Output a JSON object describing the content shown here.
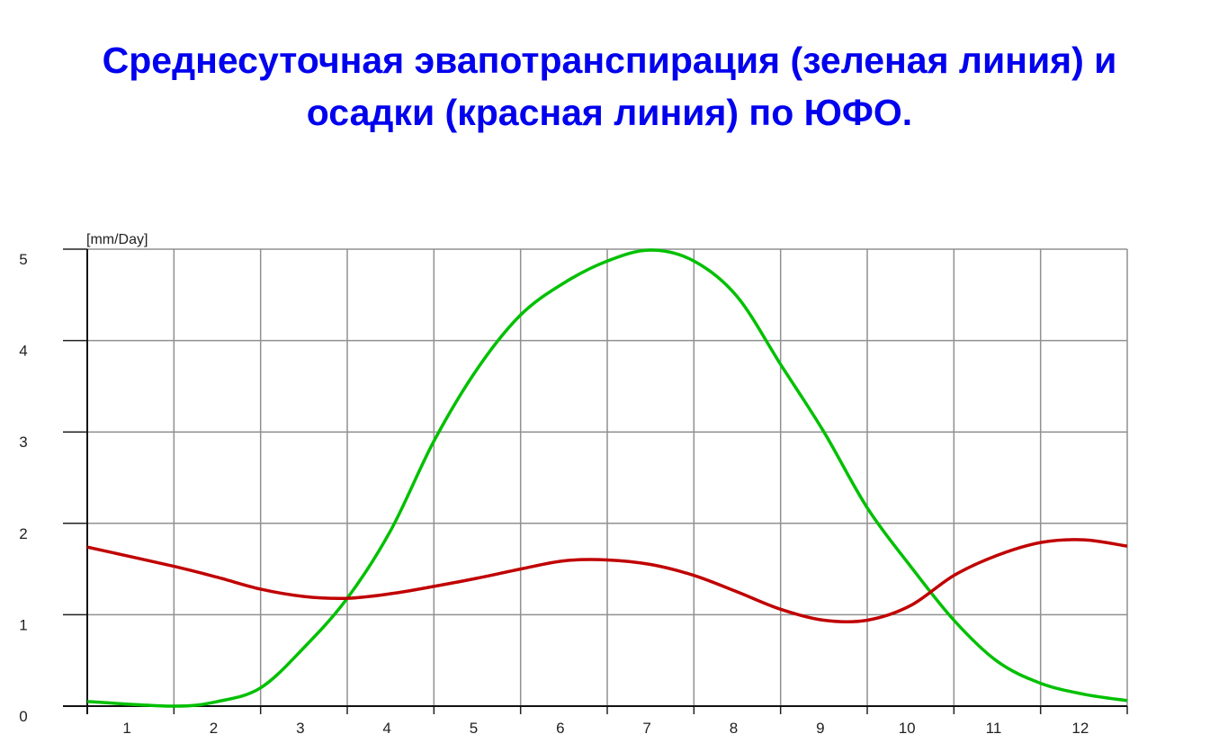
{
  "title_lines": [
    "Среднесуточная эвапотранспирация (зеленая линия) и",
    "осадки (красная линия) по ЮФО."
  ],
  "chart_data": {
    "type": "line",
    "title": "Среднесуточная эвапотранспирация (зеленая линия) и осадки (красная линия) по ЮФО.",
    "ylabel": "[mm/Day]",
    "xlabel": "",
    "x_tick_labels": [
      "1",
      "2",
      "3",
      "4",
      "5",
      "6",
      "7",
      "8",
      "9",
      "10",
      "11",
      "12"
    ],
    "y_tick_labels": [
      "0",
      "1",
      "2",
      "3",
      "4",
      "5"
    ],
    "xlim": [
      0,
      12
    ],
    "ylim": [
      0,
      5
    ],
    "grid": true,
    "x": [
      0,
      1,
      1.5,
      2,
      2.5,
      3,
      3.5,
      4,
      4.5,
      5,
      5.5,
      6,
      6.5,
      7,
      7.5,
      8,
      8.5,
      9,
      9.5,
      10,
      10.5,
      11,
      11.5,
      12
    ],
    "series": [
      {
        "color": "#00c000",
        "values": [
          0.05,
          0,
          0.05,
          0.2,
          0.64,
          1.18,
          1.92,
          2.9,
          3.69,
          4.28,
          4.63,
          4.87,
          4.99,
          4.87,
          4.48,
          3.74,
          3.0,
          2.17,
          1.53,
          0.94,
          0.49,
          0.25,
          0.13,
          0.06
        ]
      },
      {
        "color": "#c00000",
        "values": [
          1.74,
          1.53,
          1.41,
          1.28,
          1.2,
          1.18,
          1.23,
          1.31,
          1.4,
          1.5,
          1.59,
          1.6,
          1.55,
          1.43,
          1.25,
          1.06,
          0.94,
          0.94,
          1.1,
          1.43,
          1.65,
          1.79,
          1.82,
          1.75
        ]
      }
    ]
  }
}
